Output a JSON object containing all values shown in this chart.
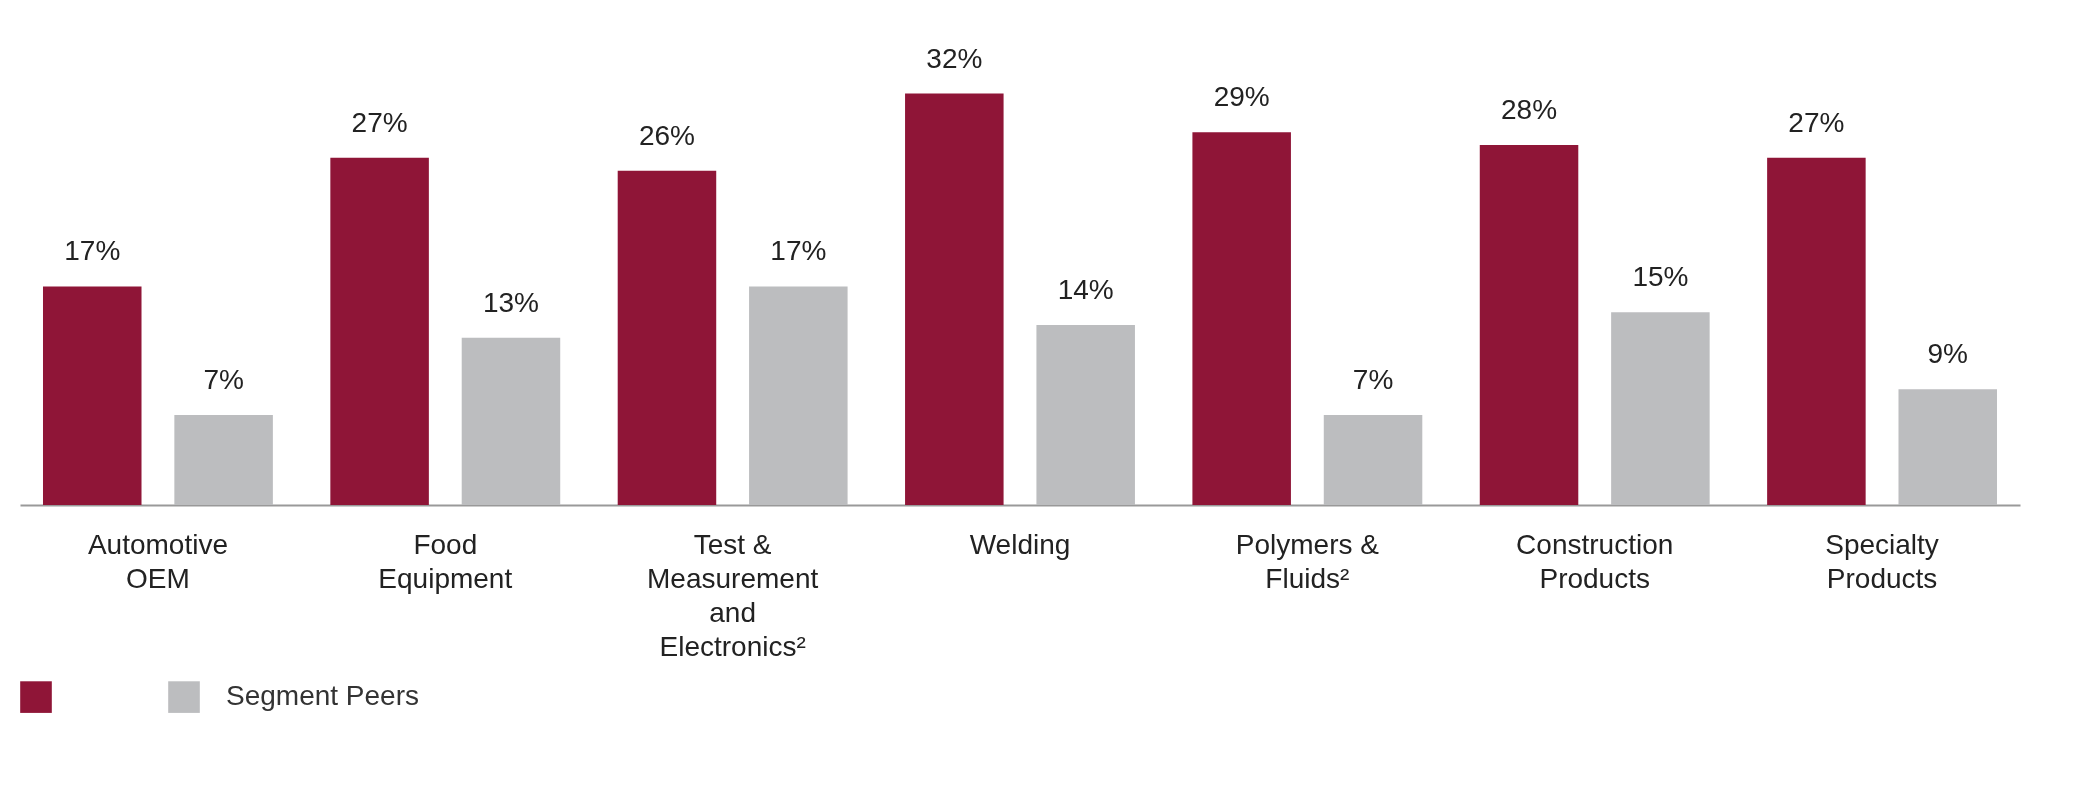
{
  "chart_data": {
    "type": "bar",
    "categories": [
      "Automotive OEM",
      "Food Equipment",
      "Test & Measurement and Electronics²",
      "Welding",
      "Polymers & Fluids²",
      "Construction Products",
      "Specialty Products"
    ],
    "series": [
      {
        "color": "#8f1537",
        "values": [
          17,
          27,
          26,
          32,
          29,
          28,
          27
        ],
        "value_labels": [
          "17%",
          "27%",
          "26%",
          "32%",
          "29%",
          "28%",
          "27%"
        ]
      },
      {
        "name": "Segment Peers",
        "color": "#bcbdbf",
        "values": [
          7,
          13,
          17,
          14,
          7,
          15,
          9
        ],
        "value_labels": [
          "7%",
          "13%",
          "17%",
          "14%",
          "7%",
          "15%",
          "9%"
        ]
      }
    ],
    "legend": "bottom",
    "tick_labels": "x"
  }
}
